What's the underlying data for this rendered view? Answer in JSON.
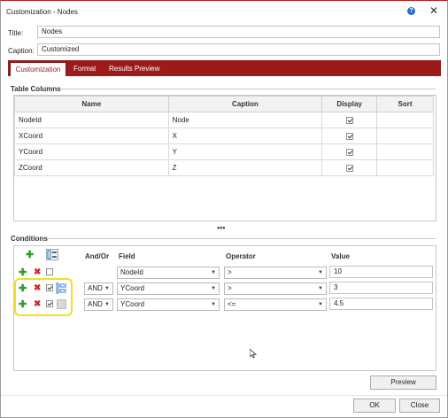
{
  "window": {
    "title": "Customization - Nodes"
  },
  "form": {
    "title_label": "Title:",
    "title_value": "Nodes",
    "caption_label": "Caption:",
    "caption_value": "Customized"
  },
  "tabs": [
    {
      "label": "Customization",
      "active": true
    },
    {
      "label": "Format",
      "active": false
    },
    {
      "label": "Results Preview",
      "active": false
    }
  ],
  "table_columns": {
    "section_title": "Table Columns",
    "headers": [
      "Name",
      "Caption",
      "Display",
      "Sort"
    ],
    "rows": [
      {
        "name": "NodeId",
        "caption": "Node",
        "display": true,
        "sort": ""
      },
      {
        "name": "XCoord",
        "caption": "X",
        "display": true,
        "sort": ""
      },
      {
        "name": "YCoord",
        "caption": "Y",
        "display": true,
        "sort": ""
      },
      {
        "name": "ZCoord",
        "caption": "Z",
        "display": true,
        "sort": ""
      }
    ]
  },
  "conditions": {
    "section_title": "Conditions",
    "headers": {
      "andor": "And/Or",
      "field": "Field",
      "operator": "Operator",
      "value": "Value"
    },
    "rows": [
      {
        "checked": false,
        "andor": "",
        "field": "NodeId",
        "operator": ">",
        "value": "10"
      },
      {
        "checked": true,
        "andor": "AND",
        "field": "YCoord",
        "operator": ">",
        "value": "3"
      },
      {
        "checked": true,
        "andor": "AND",
        "field": "YCoord",
        "operator": "<=",
        "value": "4.5"
      }
    ],
    "preview_button": "Preview"
  },
  "footer": {
    "ok_button": "OK",
    "close_button": "Close"
  },
  "colors": {
    "accent": "#9d1a1a",
    "highlight": "#f2df20",
    "add": "#2e9d2e",
    "remove": "#d12a2a"
  },
  "icons": [
    "help-icon",
    "close-icon",
    "add-icon",
    "remove-icon",
    "group-icon",
    "checkbox-icon",
    "dropdown-arrow-icon"
  ]
}
